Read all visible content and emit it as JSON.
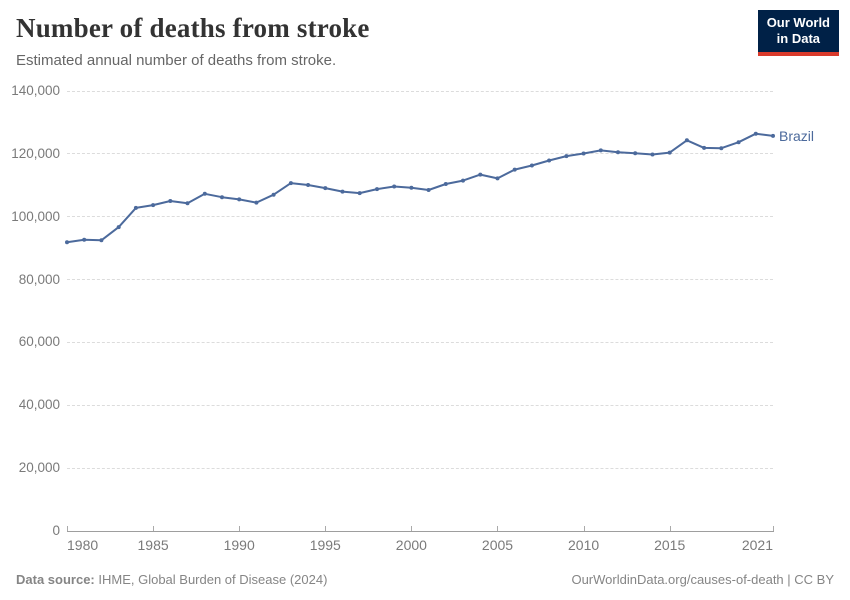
{
  "header": {
    "title": "Number of deaths from stroke",
    "subtitle": "Estimated annual number of deaths from stroke.",
    "logo": {
      "line1": "Our World",
      "line2": "in Data"
    }
  },
  "chart_data": {
    "type": "line",
    "title": "Number of deaths from stroke",
    "xlabel": "",
    "ylabel": "",
    "ylim": [
      0,
      140000
    ],
    "xlim": [
      1980,
      2021
    ],
    "grid": "horizontal-dashed",
    "legend_position": "end-of-line",
    "yticks": [
      0,
      20000,
      40000,
      60000,
      80000,
      100000,
      120000,
      140000
    ],
    "ytick_labels": [
      "0",
      "20,000",
      "40,000",
      "60,000",
      "80,000",
      "100,000",
      "120,000",
      "140,000"
    ],
    "xticks": [
      1980,
      1985,
      1990,
      1995,
      2000,
      2005,
      2010,
      2015,
      2021
    ],
    "xtick_labels": [
      "1980",
      "1985",
      "1990",
      "1995",
      "2000",
      "2005",
      "2010",
      "2015",
      "2021"
    ],
    "series": [
      {
        "name": "Brazil",
        "color": "#4C6A9C",
        "x": [
          1980,
          1981,
          1982,
          1983,
          1984,
          1985,
          1986,
          1987,
          1988,
          1989,
          1990,
          1991,
          1992,
          1993,
          1994,
          1995,
          1996,
          1997,
          1998,
          1999,
          2000,
          2001,
          2002,
          2003,
          2004,
          2005,
          2006,
          2007,
          2008,
          2009,
          2010,
          2011,
          2012,
          2013,
          2014,
          2015,
          2016,
          2017,
          2018,
          2019,
          2020,
          2021
        ],
        "values": [
          91900,
          92700,
          92500,
          96700,
          102800,
          103700,
          105000,
          104300,
          107300,
          106200,
          105500,
          104500,
          107000,
          110700,
          110100,
          109100,
          108000,
          107500,
          108800,
          109600,
          109200,
          108500,
          110400,
          111500,
          113400,
          112200,
          115000,
          116300,
          117900,
          119300,
          120100,
          121100,
          120500,
          120200,
          119800,
          120400,
          124300,
          121900,
          121800,
          123700,
          126400,
          125700
        ]
      }
    ]
  },
  "footer": {
    "source_label": "Data source:",
    "source_text": " IHME, Global Burden of Disease (2024)",
    "credit": "OurWorldinData.org/causes-of-death | CC BY"
  },
  "colors": {
    "line": "#4C6A9C",
    "entity_label": "#4C6A9C",
    "logo_background": "#002147",
    "logo_accent": "#D93A2B",
    "gridline": "#DCDCDC",
    "axis": "#9E9E9E",
    "tick_text": "#7A7A7A",
    "title_text": "#333333",
    "subtitle_text": "#666666",
    "footer_text": "#858585"
  }
}
